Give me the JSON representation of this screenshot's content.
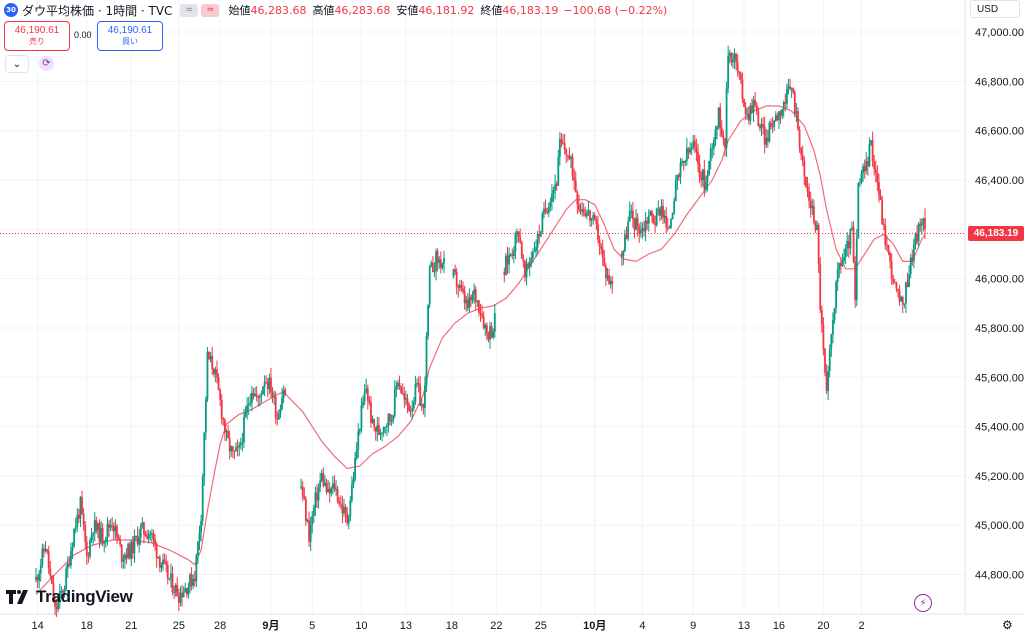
{
  "header": {
    "symbol_badge": "30",
    "title": "ダウ平均株価 · 1時間 · TVC",
    "ohlc": [
      {
        "label": "始値",
        "value": "46,283.68"
      },
      {
        "label": "高値",
        "value": "46,283.68"
      },
      {
        "label": "安値",
        "value": "46,181.92"
      },
      {
        "label": "終値",
        "value": "46,183.19"
      }
    ],
    "change": "−100.68 (−0.22%)"
  },
  "trade": {
    "sell_price": "46,190.61",
    "sell_label": "売り",
    "spread": "0.00",
    "buy_price": "46,190.61",
    "buy_label": "買い"
  },
  "currency": "USD",
  "last_price": "46,183.19",
  "logo_text": "TradingView",
  "colors": {
    "up": "#089981",
    "down": "#f23645",
    "ma": "#f26b7a",
    "grid": "#f0f3fa"
  },
  "icons": [
    "chevron-down-icon",
    "refresh-icon",
    "flash-icon",
    "settings-icon",
    "tradingview-logo-icon"
  ],
  "chart_data": {
    "type": "candlestick",
    "ylim": [
      44640,
      47130
    ],
    "y_ticks": [
      44800,
      45000,
      45200,
      45400,
      45600,
      45800,
      46000,
      46200,
      46400,
      46600,
      46800,
      47000
    ],
    "y_tick_labels": [
      "44,800.00",
      "45,000.00",
      "45,200.00",
      "45,400.00",
      "45,600.00",
      "45,800.00",
      "46,000.00",
      "46,200.00",
      "46,400.00",
      "46,600.00",
      "46,800.00",
      "47,000.00"
    ],
    "x_ticks": [
      {
        "label": "14",
        "bold": false
      },
      {
        "label": "18",
        "bold": false
      },
      {
        "label": "21",
        "bold": false
      },
      {
        "label": "25",
        "bold": false
      },
      {
        "label": "28",
        "bold": false
      },
      {
        "label": "9月",
        "bold": true
      },
      {
        "label": "5",
        "bold": false
      },
      {
        "label": "10",
        "bold": false
      },
      {
        "label": "13",
        "bold": false
      },
      {
        "label": "18",
        "bold": false
      },
      {
        "label": "22",
        "bold": false
      },
      {
        "label": "25",
        "bold": false
      },
      {
        "label": "10月",
        "bold": true
      },
      {
        "label": "4",
        "bold": false
      },
      {
        "label": "9",
        "bold": false
      },
      {
        "label": "13",
        "bold": false
      },
      {
        "label": "16",
        "bold": false
      },
      {
        "label": "20",
        "bold": false
      },
      {
        "label": "2",
        "bold": false
      }
    ],
    "last_close": 46183.19,
    "close_path": [
      [
        0,
        44780
      ],
      [
        6,
        44920
      ],
      [
        12,
        44650
      ],
      [
        18,
        44760
      ],
      [
        24,
        44980
      ],
      [
        28,
        45080
      ],
      [
        32,
        44870
      ],
      [
        36,
        45000
      ],
      [
        42,
        44950
      ],
      [
        48,
        45020
      ],
      [
        54,
        44880
      ],
      [
        60,
        44900
      ],
      [
        66,
        44980
      ],
      [
        72,
        44970
      ],
      [
        78,
        44860
      ],
      [
        84,
        44780
      ],
      [
        90,
        44720
      ],
      [
        96,
        44760
      ],
      [
        100,
        44800
      ],
      [
        104,
        45050
      ],
      [
        108,
        45680
      ],
      [
        112,
        45640
      ],
      [
        116,
        45500
      ],
      [
        120,
        45350
      ],
      [
        124,
        45280
      ],
      [
        128,
        45300
      ],
      [
        132,
        45440
      ],
      [
        136,
        45560
      ],
      [
        140,
        45500
      ],
      [
        144,
        45600
      ],
      [
        148,
        45560
      ],
      [
        152,
        45440
      ],
      [
        156,
        45560
      ],
      [
        168,
        45120
      ],
      [
        172,
        44960
      ],
      [
        176,
        45100
      ],
      [
        180,
        45200
      ],
      [
        184,
        45120
      ],
      [
        188,
        45160
      ],
      [
        192,
        45080
      ],
      [
        196,
        45020
      ],
      [
        200,
        45200
      ],
      [
        204,
        45420
      ],
      [
        208,
        45560
      ],
      [
        212,
        45400
      ],
      [
        216,
        45380
      ],
      [
        220,
        45420
      ],
      [
        224,
        45440
      ],
      [
        228,
        45600
      ],
      [
        232,
        45500
      ],
      [
        236,
        45480
      ],
      [
        240,
        45560
      ],
      [
        244,
        45460
      ],
      [
        248,
        46020
      ],
      [
        252,
        46080
      ],
      [
        256,
        46060
      ],
      [
        264,
        46000
      ],
      [
        268,
        45940
      ],
      [
        272,
        45880
      ],
      [
        276,
        45940
      ],
      [
        280,
        45880
      ],
      [
        284,
        45780
      ],
      [
        288,
        45800
      ],
      [
        296,
        46060
      ],
      [
        300,
        46120
      ],
      [
        304,
        46200
      ],
      [
        308,
        46000
      ],
      [
        312,
        46100
      ],
      [
        316,
        46160
      ],
      [
        320,
        46260
      ],
      [
        324,
        46340
      ],
      [
        328,
        46400
      ],
      [
        330,
        46540
      ],
      [
        334,
        46520
      ],
      [
        338,
        46440
      ],
      [
        342,
        46300
      ],
      [
        346,
        46280
      ],
      [
        350,
        46240
      ],
      [
        354,
        46180
      ],
      [
        358,
        46040
      ],
      [
        362,
        45980
      ],
      [
        370,
        46120
      ],
      [
        374,
        46260
      ],
      [
        378,
        46220
      ],
      [
        382,
        46200
      ],
      [
        386,
        46260
      ],
      [
        390,
        46240
      ],
      [
        394,
        46300
      ],
      [
        398,
        46180
      ],
      [
        402,
        46340
      ],
      [
        406,
        46440
      ],
      [
        410,
        46500
      ],
      [
        414,
        46540
      ],
      [
        418,
        46440
      ],
      [
        422,
        46380
      ],
      [
        426,
        46560
      ],
      [
        430,
        46660
      ],
      [
        434,
        46560
      ],
      [
        436,
        46920
      ],
      [
        440,
        46900
      ],
      [
        444,
        46780
      ],
      [
        448,
        46660
      ],
      [
        452,
        46720
      ],
      [
        456,
        46620
      ],
      [
        460,
        46560
      ],
      [
        464,
        46640
      ],
      [
        468,
        46680
      ],
      [
        472,
        46720
      ],
      [
        476,
        46780
      ],
      [
        480,
        46620
      ],
      [
        484,
        46400
      ],
      [
        488,
        46300
      ],
      [
        492,
        46200
      ],
      [
        494,
        45900
      ],
      [
        496,
        45700
      ],
      [
        498,
        45520
      ],
      [
        502,
        45860
      ],
      [
        506,
        46060
      ],
      [
        510,
        46100
      ],
      [
        514,
        46200
      ],
      [
        516,
        45900
      ],
      [
        518,
        46380
      ],
      [
        522,
        46440
      ],
      [
        526,
        46540
      ],
      [
        530,
        46400
      ],
      [
        534,
        46200
      ],
      [
        538,
        46060
      ],
      [
        542,
        45940
      ],
      [
        546,
        45880
      ],
      [
        550,
        46040
      ],
      [
        554,
        46160
      ],
      [
        558,
        46240
      ],
      [
        560,
        46183.19
      ]
    ],
    "ma_path": [
      [
        0,
        44720
      ],
      [
        12,
        44800
      ],
      [
        24,
        44880
      ],
      [
        36,
        44920
      ],
      [
        48,
        44940
      ],
      [
        60,
        44940
      ],
      [
        72,
        44930
      ],
      [
        84,
        44900
      ],
      [
        96,
        44860
      ],
      [
        100,
        44840
      ],
      [
        104,
        44900
      ],
      [
        108,
        45060
      ],
      [
        112,
        45200
      ],
      [
        116,
        45330
      ],
      [
        120,
        45410
      ],
      [
        128,
        45450
      ],
      [
        136,
        45470
      ],
      [
        144,
        45500
      ],
      [
        152,
        45530
      ],
      [
        156,
        45540
      ],
      [
        168,
        45460
      ],
      [
        180,
        45340
      ],
      [
        188,
        45280
      ],
      [
        196,
        45230
      ],
      [
        204,
        45240
      ],
      [
        212,
        45290
      ],
      [
        220,
        45320
      ],
      [
        228,
        45360
      ],
      [
        236,
        45420
      ],
      [
        244,
        45530
      ],
      [
        248,
        45640
      ],
      [
        256,
        45760
      ],
      [
        264,
        45820
      ],
      [
        272,
        45860
      ],
      [
        280,
        45880
      ],
      [
        288,
        45890
      ],
      [
        296,
        45920
      ],
      [
        304,
        45980
      ],
      [
        312,
        46060
      ],
      [
        320,
        46140
      ],
      [
        328,
        46220
      ],
      [
        334,
        46280
      ],
      [
        340,
        46320
      ],
      [
        346,
        46320
      ],
      [
        352,
        46300
      ],
      [
        358,
        46220
      ],
      [
        364,
        46120
      ],
      [
        370,
        46080
      ],
      [
        378,
        46070
      ],
      [
        386,
        46100
      ],
      [
        394,
        46120
      ],
      [
        402,
        46180
      ],
      [
        410,
        46260
      ],
      [
        418,
        46330
      ],
      [
        426,
        46400
      ],
      [
        432,
        46480
      ],
      [
        436,
        46560
      ],
      [
        444,
        46640
      ],
      [
        452,
        46680
      ],
      [
        460,
        46700
      ],
      [
        468,
        46700
      ],
      [
        476,
        46680
      ],
      [
        484,
        46620
      ],
      [
        490,
        46520
      ],
      [
        494,
        46420
      ],
      [
        498,
        46280
      ],
      [
        504,
        46120
      ],
      [
        510,
        46040
      ],
      [
        516,
        46040
      ],
      [
        522,
        46100
      ],
      [
        528,
        46160
      ],
      [
        534,
        46180
      ],
      [
        540,
        46140
      ],
      [
        546,
        46070
      ],
      [
        552,
        46070
      ],
      [
        558,
        46160
      ],
      [
        560,
        46180
      ]
    ],
    "x_domain": [
      0,
      560
    ],
    "x_tick_positions": [
      1,
      32,
      60,
      90,
      116,
      148,
      174,
      205,
      233,
      262,
      290,
      318,
      352,
      382,
      414,
      446,
      468,
      496,
      520
    ],
    "grid": true,
    "legend": "top-left"
  }
}
